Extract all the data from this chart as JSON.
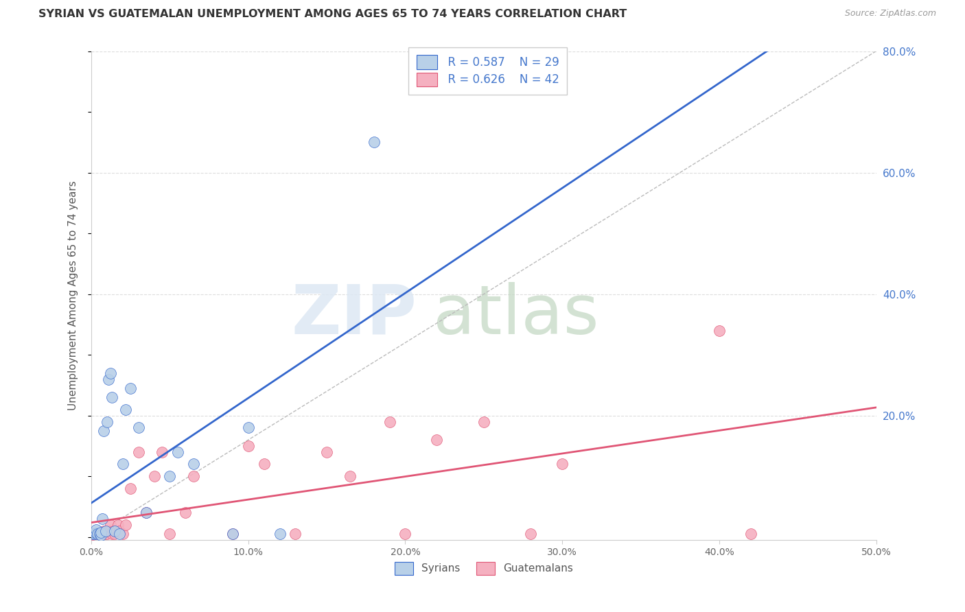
{
  "title": "SYRIAN VS GUATEMALAN UNEMPLOYMENT AMONG AGES 65 TO 74 YEARS CORRELATION CHART",
  "source": "Source: ZipAtlas.com",
  "ylabel": "Unemployment Among Ages 65 to 74 years",
  "xlim": [
    0.0,
    0.5
  ],
  "ylim": [
    -0.005,
    0.8
  ],
  "xtick_vals": [
    0.0,
    0.1,
    0.2,
    0.3,
    0.4,
    0.5
  ],
  "ytick_right_vals": [
    0.2,
    0.4,
    0.6,
    0.8
  ],
  "background_color": "#ffffff",
  "grid_color": "#dddddd",
  "syrian_color": "#b8d0e8",
  "guatemalan_color": "#f5b0c0",
  "syrian_line_color": "#3366cc",
  "guatemalan_line_color": "#e05575",
  "diagonal_color": "#bbbbbb",
  "r_syrian": "0.587",
  "n_syrian": "29",
  "r_guatemalan": "0.626",
  "n_guatemalan": "42",
  "syrian_x": [
    0.001,
    0.002,
    0.003,
    0.003,
    0.004,
    0.005,
    0.006,
    0.006,
    0.007,
    0.008,
    0.009,
    0.01,
    0.011,
    0.012,
    0.013,
    0.015,
    0.018,
    0.02,
    0.022,
    0.025,
    0.03,
    0.035,
    0.05,
    0.055,
    0.065,
    0.09,
    0.1,
    0.12,
    0.18
  ],
  "syrian_y": [
    0.005,
    0.005,
    0.007,
    0.012,
    0.005,
    0.005,
    0.003,
    0.008,
    0.03,
    0.175,
    0.01,
    0.19,
    0.26,
    0.27,
    0.23,
    0.01,
    0.005,
    0.12,
    0.21,
    0.245,
    0.18,
    0.04,
    0.1,
    0.14,
    0.12,
    0.005,
    0.18,
    0.005,
    0.65
  ],
  "guatemalan_x": [
    0.001,
    0.002,
    0.003,
    0.004,
    0.005,
    0.006,
    0.007,
    0.008,
    0.009,
    0.01,
    0.011,
    0.012,
    0.013,
    0.014,
    0.015,
    0.016,
    0.017,
    0.018,
    0.02,
    0.022,
    0.025,
    0.03,
    0.035,
    0.04,
    0.045,
    0.05,
    0.06,
    0.065,
    0.09,
    0.1,
    0.11,
    0.13,
    0.15,
    0.165,
    0.19,
    0.2,
    0.22,
    0.25,
    0.28,
    0.3,
    0.4,
    0.42
  ],
  "guatemalan_y": [
    0.004,
    0.005,
    0.005,
    0.006,
    0.005,
    0.008,
    0.005,
    0.01,
    0.005,
    0.005,
    0.01,
    0.02,
    0.005,
    0.01,
    0.005,
    0.01,
    0.02,
    0.01,
    0.005,
    0.02,
    0.08,
    0.14,
    0.04,
    0.1,
    0.14,
    0.005,
    0.04,
    0.1,
    0.005,
    0.15,
    0.12,
    0.005,
    0.14,
    0.1,
    0.19,
    0.005,
    0.16,
    0.19,
    0.005,
    0.12,
    0.34,
    0.005
  ]
}
